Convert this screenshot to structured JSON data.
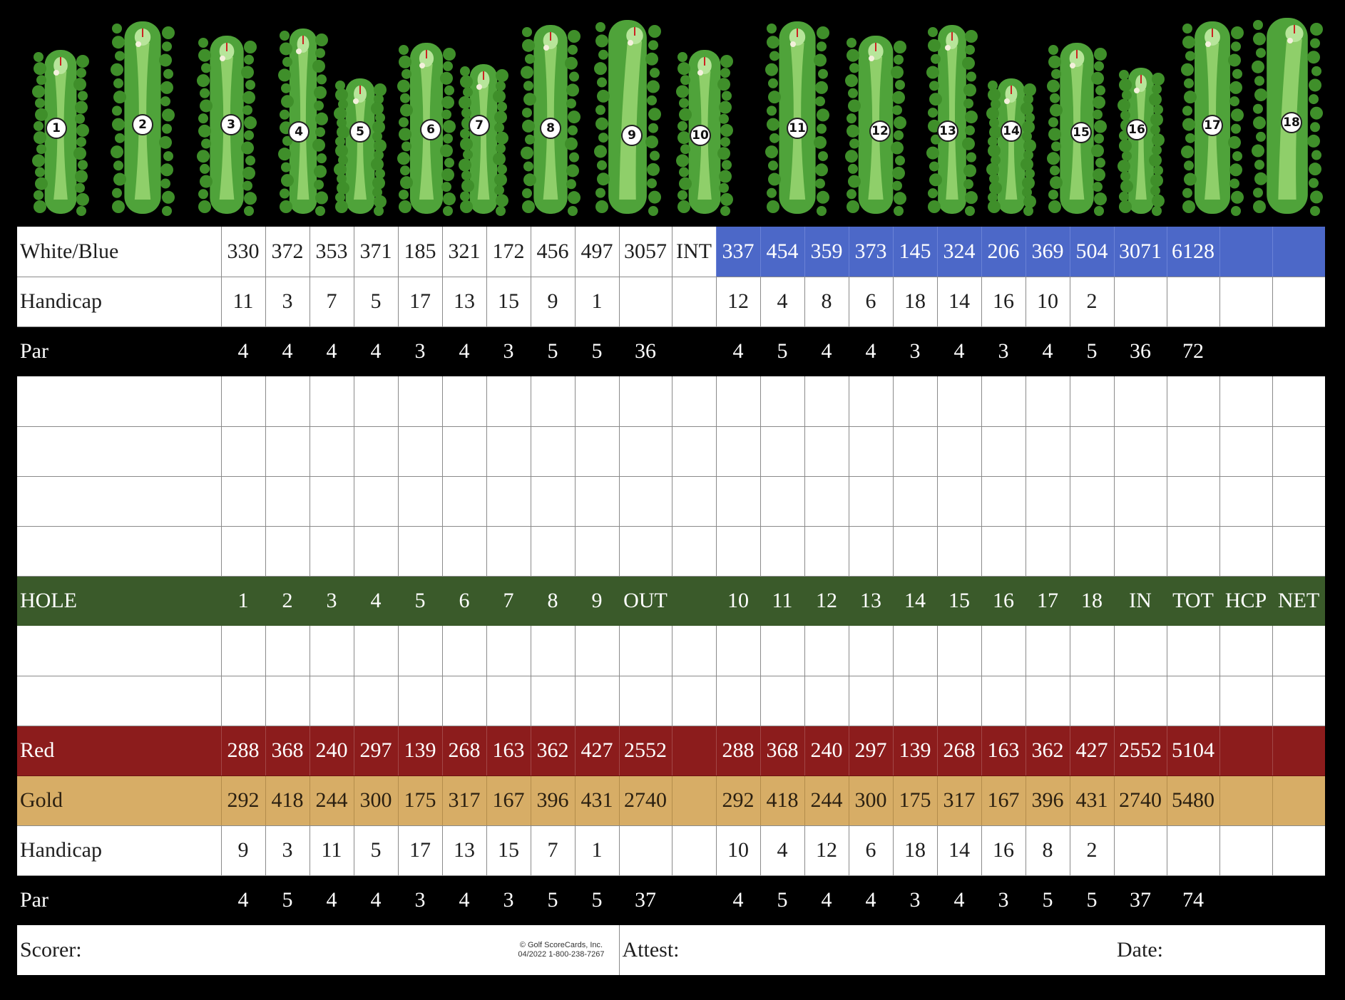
{
  "holes_map": [
    {
      "num": "1"
    },
    {
      "num": "2"
    },
    {
      "num": "3"
    },
    {
      "num": "4"
    },
    {
      "num": "5"
    },
    {
      "num": "6"
    },
    {
      "num": "7"
    },
    {
      "num": "8"
    },
    {
      "num": "9"
    },
    {
      "num": "10"
    },
    {
      "num": "11"
    },
    {
      "num": "12"
    },
    {
      "num": "13"
    },
    {
      "num": "14"
    },
    {
      "num": "15"
    },
    {
      "num": "16"
    },
    {
      "num": "17"
    },
    {
      "num": "18"
    }
  ],
  "colors": {
    "blue": "#4c68c8",
    "green": "#3a5a2a",
    "red": "#8c1c1c",
    "gold": "#d7ad66",
    "black": "#000000"
  },
  "rows": {
    "white_blue": {
      "label": "White/Blue",
      "front": [
        "330",
        "372",
        "353",
        "371",
        "185",
        "321",
        "172",
        "456",
        "497"
      ],
      "out": "3057",
      "int": "INT",
      "back": [
        "337",
        "454",
        "359",
        "373",
        "145",
        "324",
        "206",
        "369",
        "504"
      ],
      "in": "3071",
      "tot": "6128"
    },
    "handicap_men": {
      "label": "Handicap",
      "front": [
        "11",
        "3",
        "7",
        "5",
        "17",
        "13",
        "15",
        "9",
        "1"
      ],
      "back": [
        "12",
        "4",
        "8",
        "6",
        "18",
        "14",
        "16",
        "10",
        "2"
      ]
    },
    "par_men": {
      "label": "Par",
      "front": [
        "4",
        "4",
        "4",
        "4",
        "3",
        "4",
        "3",
        "5",
        "5"
      ],
      "out": "36",
      "back": [
        "4",
        "5",
        "4",
        "4",
        "3",
        "4",
        "3",
        "4",
        "5"
      ],
      "in": "36",
      "tot": "72"
    },
    "hole": {
      "label": "HOLE",
      "front": [
        "1",
        "2",
        "3",
        "4",
        "5",
        "6",
        "7",
        "8",
        "9"
      ],
      "out": "OUT",
      "back": [
        "10",
        "11",
        "12",
        "13",
        "14",
        "15",
        "16",
        "17",
        "18"
      ],
      "in": "IN",
      "tot": "TOT",
      "hcp": "HCP",
      "net": "NET"
    },
    "red": {
      "label": "Red",
      "front": [
        "288",
        "368",
        "240",
        "297",
        "139",
        "268",
        "163",
        "362",
        "427"
      ],
      "out": "2552",
      "back": [
        "288",
        "368",
        "240",
        "297",
        "139",
        "268",
        "163",
        "362",
        "427"
      ],
      "in": "2552",
      "tot": "5104"
    },
    "gold": {
      "label": "Gold",
      "front": [
        "292",
        "418",
        "244",
        "300",
        "175",
        "317",
        "167",
        "396",
        "431"
      ],
      "out": "2740",
      "back": [
        "292",
        "418",
        "244",
        "300",
        "175",
        "317",
        "167",
        "396",
        "431"
      ],
      "in": "2740",
      "tot": "5480"
    },
    "handicap_women": {
      "label": "Handicap",
      "front": [
        "9",
        "3",
        "11",
        "5",
        "17",
        "13",
        "15",
        "7",
        "1"
      ],
      "back": [
        "10",
        "4",
        "12",
        "6",
        "18",
        "14",
        "16",
        "8",
        "2"
      ]
    },
    "par_women": {
      "label": "Par",
      "front": [
        "4",
        "5",
        "4",
        "4",
        "3",
        "4",
        "3",
        "5",
        "5"
      ],
      "out": "37",
      "back": [
        "4",
        "5",
        "4",
        "4",
        "3",
        "4",
        "3",
        "5",
        "5"
      ],
      "in": "37",
      "tot": "74"
    }
  },
  "footer": {
    "scorer": "Scorer:",
    "attest": "Attest:",
    "date": "Date:",
    "copyright_line1": "© Golf ScoreCards, Inc.",
    "copyright_line2": "04/2022  1-800-238-7267"
  }
}
